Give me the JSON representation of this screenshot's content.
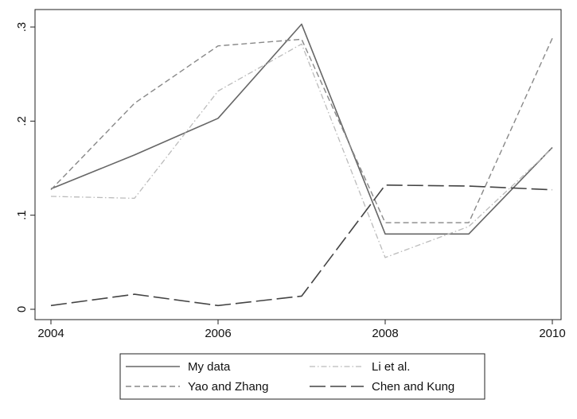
{
  "chart_data": {
    "type": "line",
    "title": "",
    "xlabel": "",
    "ylabel": "",
    "x": [
      2004,
      2005,
      2006,
      2007,
      2008,
      2009,
      2010
    ],
    "xlim": [
      2004,
      2010
    ],
    "ylim": [
      0,
      0.3
    ],
    "x_ticks": [
      2004,
      2006,
      2008,
      2010
    ],
    "x_tick_labels": [
      "2004",
      "2006",
      "2008",
      "2010"
    ],
    "y_ticks": [
      0,
      0.1,
      0.2,
      0.3
    ],
    "y_tick_labels": [
      "0",
      ".1",
      ".2",
      ".3"
    ],
    "grid": false,
    "legend_position": "bottom",
    "series": [
      {
        "name": "My data",
        "values": [
          0.128,
          0.164,
          0.203,
          0.303,
          0.08,
          0.08,
          0.172
        ],
        "color": "#666666",
        "dash": "solid"
      },
      {
        "name": "Li et al.",
        "values": [
          0.12,
          0.118,
          0.232,
          0.282,
          0.055,
          0.088,
          0.171
        ],
        "color": "#bbbbbb",
        "dash": "dashdot"
      },
      {
        "name": "Yao and Zhang",
        "values": [
          0.127,
          0.219,
          0.28,
          0.287,
          0.092,
          0.092,
          0.288
        ],
        "color": "#888888",
        "dash": "dash"
      },
      {
        "name": "Chen and Kung",
        "values": [
          0.004,
          0.016,
          0.004,
          0.014,
          0.132,
          0.131,
          0.127
        ],
        "color": "#444444",
        "dash": "longdash"
      }
    ]
  }
}
